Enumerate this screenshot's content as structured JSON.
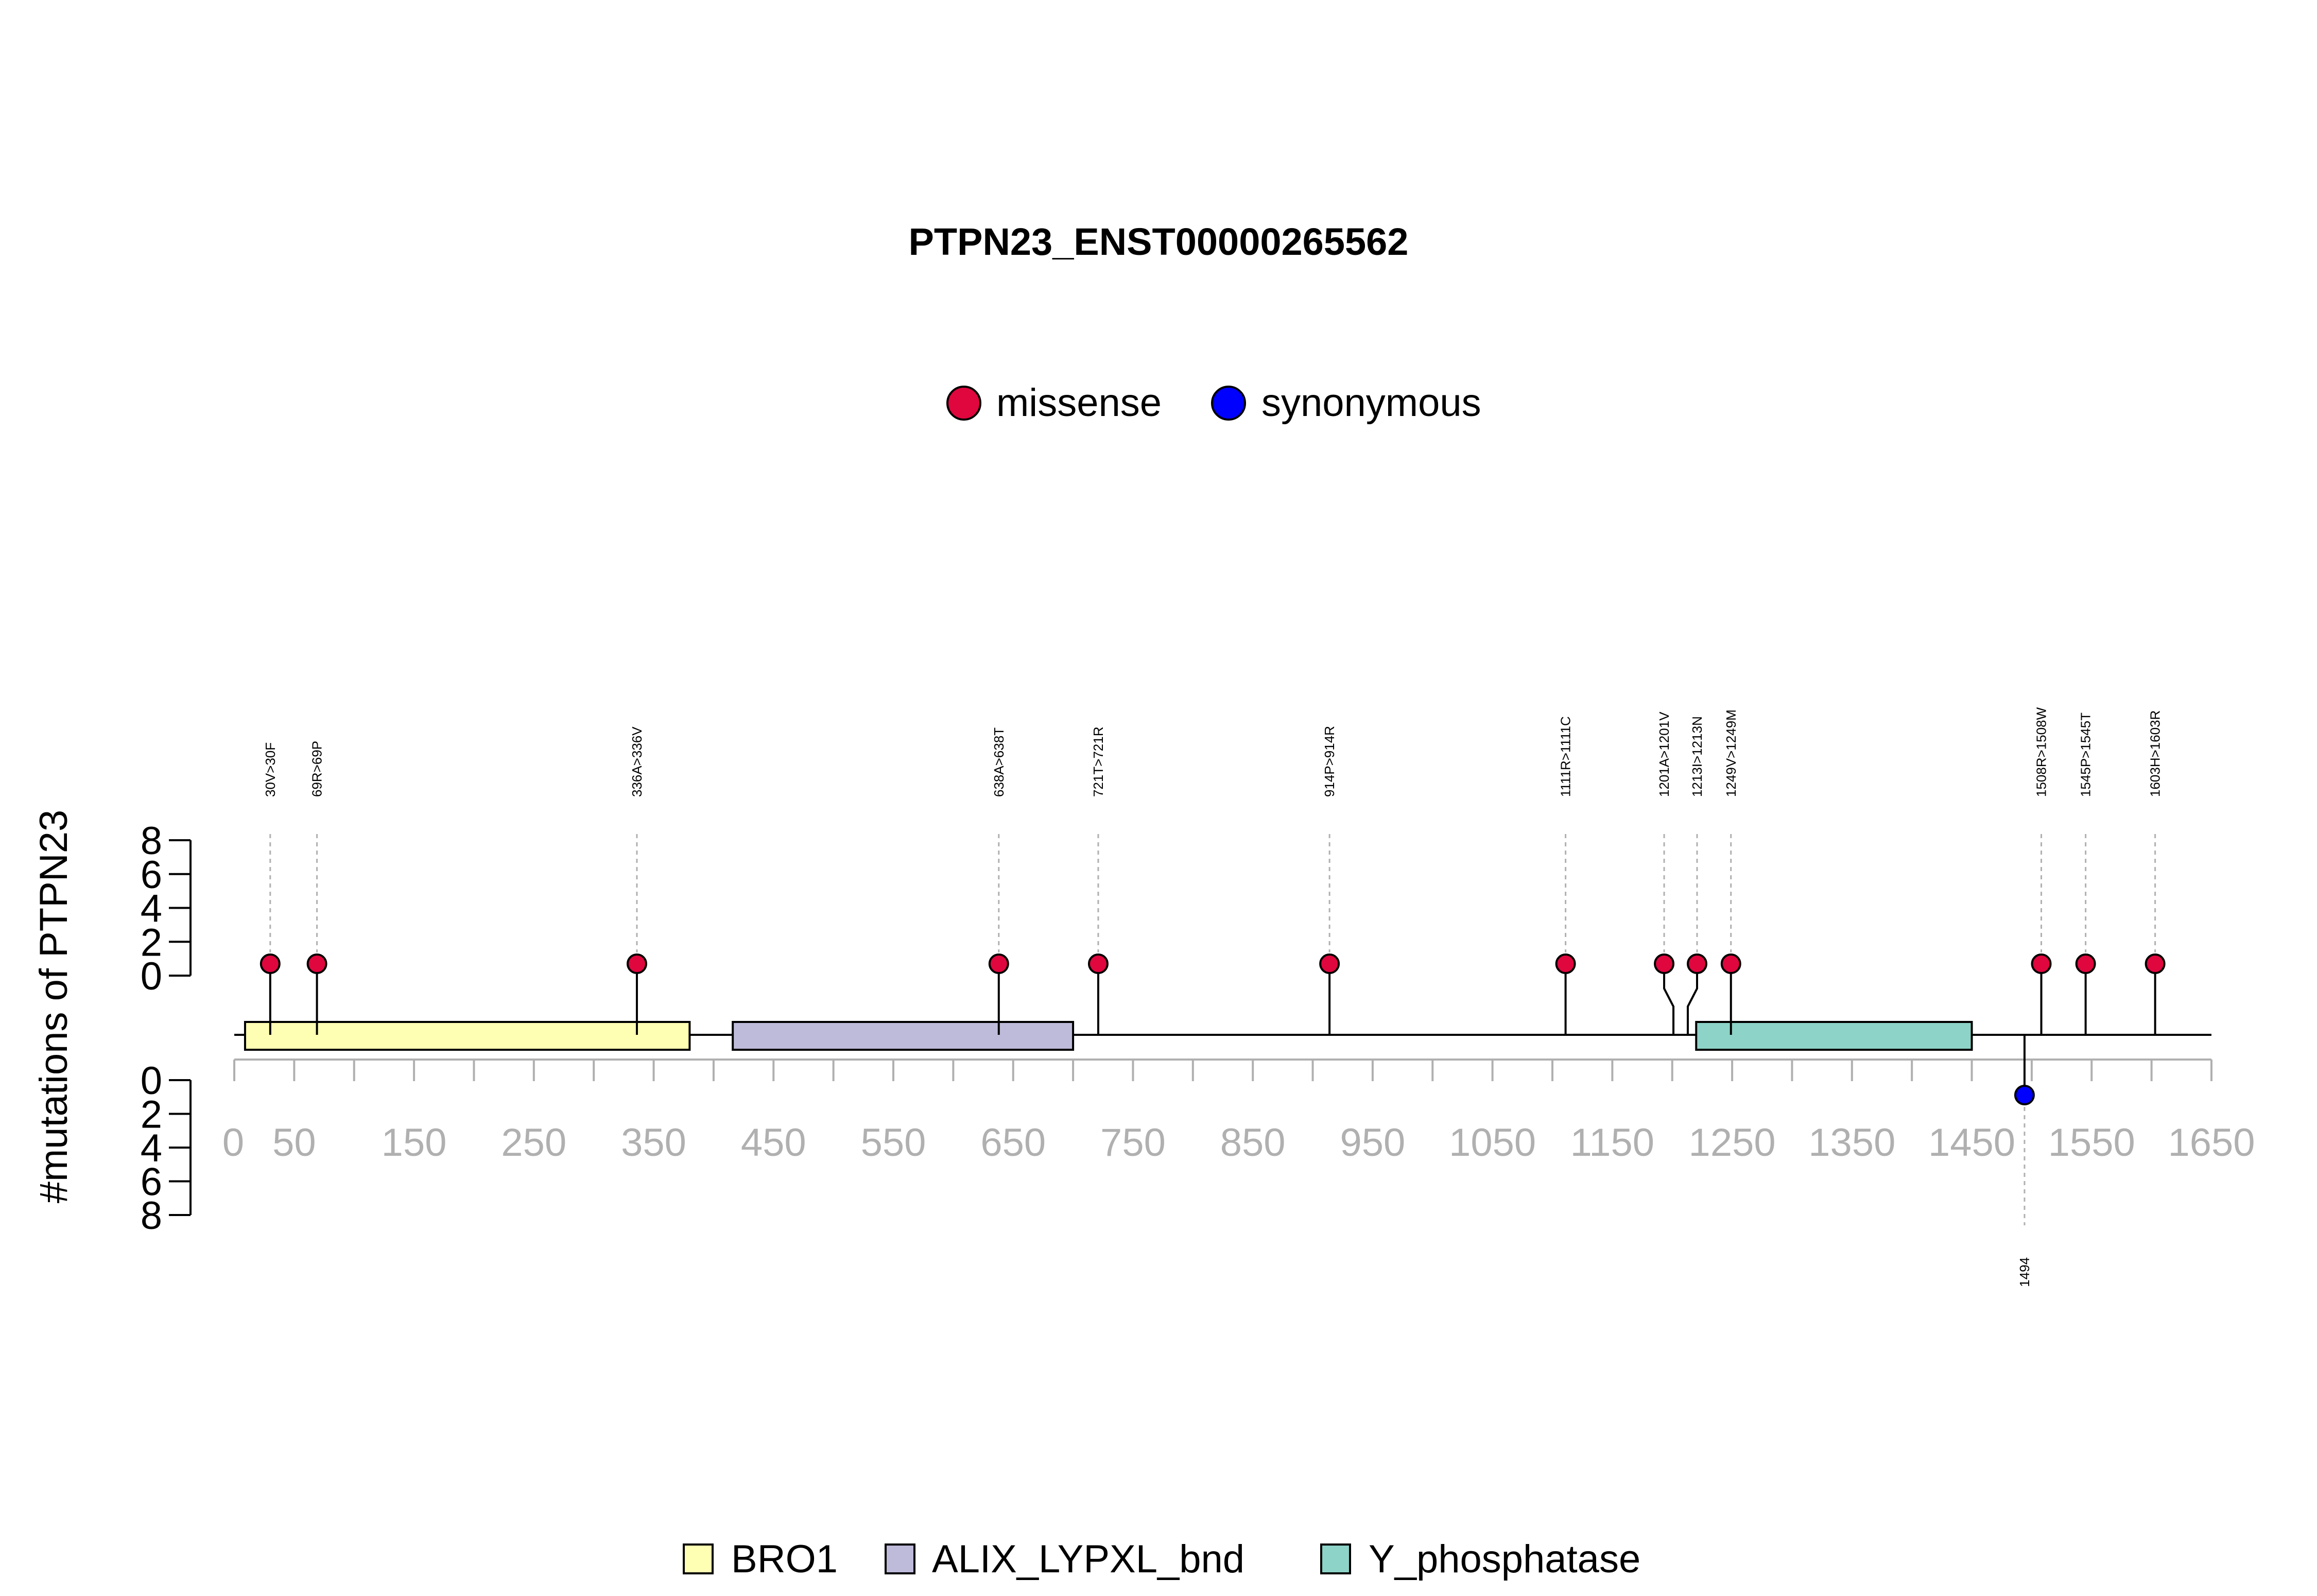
{
  "chart_data": {
    "type": "lollipop",
    "title": "PTPN23_ENST00000265562",
    "ylabel": "#mutations of PTPN23",
    "xlim": [
      0,
      1650
    ],
    "x_ticks": [
      "0",
      "50",
      "150",
      "250",
      "350",
      "450",
      "550",
      "650",
      "750",
      "850",
      "950",
      "1050",
      "1150",
      "1250",
      "1350",
      "1450",
      "1550",
      "1650"
    ],
    "y_ticks_top": [
      "8",
      "6",
      "4",
      "2",
      "0"
    ],
    "y_ticks_bottom": [
      "0",
      "2",
      "4",
      "6",
      "8"
    ],
    "ylim": [
      0,
      8
    ],
    "mutation_legend": [
      {
        "label": "missense",
        "color": "#e0063e"
      },
      {
        "label": "synonymous",
        "color": "#0000ff"
      }
    ],
    "mutations": [
      {
        "position": 30,
        "label": "30V>30F",
        "count": 1,
        "type": "missense"
      },
      {
        "position": 69,
        "label": "69R>69P",
        "count": 1,
        "type": "missense"
      },
      {
        "position": 336,
        "label": "336A>336V",
        "count": 1,
        "type": "missense"
      },
      {
        "position": 638,
        "label": "638A>638T",
        "count": 1,
        "type": "missense"
      },
      {
        "position": 721,
        "label": "721T>721R",
        "count": 1,
        "type": "missense"
      },
      {
        "position": 914,
        "label": "914P>914R",
        "count": 1,
        "type": "missense"
      },
      {
        "position": 1111,
        "label": "1111R>1111C",
        "count": 1,
        "type": "missense"
      },
      {
        "position": 1201,
        "label": "1201A>1201V",
        "count": 1,
        "type": "missense"
      },
      {
        "position": 1213,
        "label": "1213I>1213N",
        "count": 1,
        "type": "missense"
      },
      {
        "position": 1249,
        "label": "1249V>1249M",
        "count": 1,
        "type": "missense"
      },
      {
        "position": 1508,
        "label": "1508R>1508W",
        "count": 1,
        "type": "missense"
      },
      {
        "position": 1545,
        "label": "1545P>1545T",
        "count": 1,
        "type": "missense"
      },
      {
        "position": 1603,
        "label": "1603H>1603R",
        "count": 1,
        "type": "missense"
      },
      {
        "position": 1494,
        "label": "1494",
        "count": 1,
        "type": "synonymous"
      }
    ],
    "domains": [
      {
        "name": "BRO1",
        "start": 9,
        "end": 380,
        "color": "#ffffb3"
      },
      {
        "name": "ALIX_LYPXL_bnd",
        "start": 416,
        "end": 700,
        "color": "#bebada"
      },
      {
        "name": "Y_phosphatase",
        "start": 1220,
        "end": 1450,
        "color": "#8dd3c7"
      }
    ]
  }
}
